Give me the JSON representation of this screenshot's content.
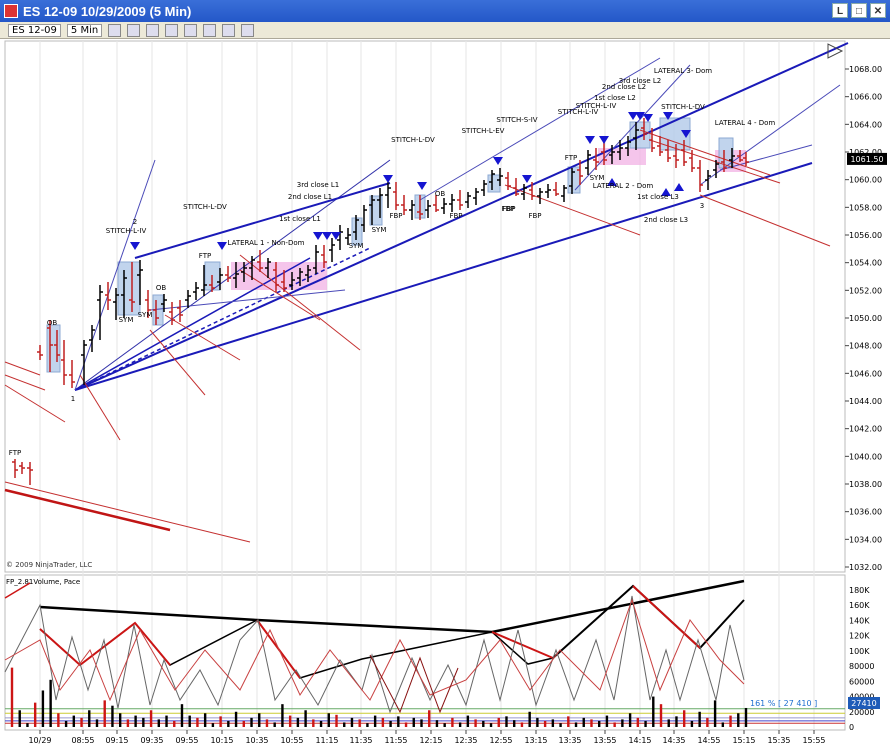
{
  "window": {
    "title": "ES 12-09  10/29/2009 (5 Min)",
    "btn_minimize": "L",
    "btn_restore": "□",
    "btn_close": "✕"
  },
  "toolbar": {
    "instrument": "ES 12-09",
    "period": "5 Min"
  },
  "price_panel": {
    "copyright": "© 2009 NinjaTrader, LLC",
    "y_ticks": [
      1068.0,
      1066.0,
      1064.0,
      1062.0,
      1060.0,
      1058.0,
      1056.0,
      1054.0,
      1052.0,
      1050.0,
      1048.0,
      1046.0,
      1044.0,
      1042.0,
      1040.0,
      1038.0,
      1036.0,
      1034.0,
      1032.0
    ],
    "last_price": "1061.50"
  },
  "volume_panel": {
    "label": "FP_2.81Volume, Pace",
    "y_ticks": [
      "180K",
      "160K",
      "140K",
      "120K",
      "100K",
      "80000",
      "60000",
      "40000",
      "20000",
      "0"
    ],
    "pace_readout": "161 % [ 27 410 ]",
    "last_volume": "27410"
  },
  "x_axis": {
    "ticks": [
      "10/29",
      "08:55",
      "09:15",
      "09:35",
      "09:55",
      "10:15",
      "10:35",
      "10:55",
      "11:15",
      "11:35",
      "11:55",
      "12:15",
      "12:35",
      "12:55",
      "13:15",
      "13:35",
      "13:55",
      "14:15",
      "14:35",
      "14:55",
      "15:15",
      "15:35",
      "15:55"
    ]
  },
  "annotations": [
    {
      "text": "FTP"
    },
    {
      "text": "OB"
    },
    {
      "text": "1"
    },
    {
      "text": "2"
    },
    {
      "text": "STITCH-L-IV"
    },
    {
      "text": "SYM"
    },
    {
      "text": "SYM"
    },
    {
      "text": "OB"
    },
    {
      "text": "STITCH-L-DV"
    },
    {
      "text": "FTP"
    },
    {
      "text": "LATERAL 1 - Non-Dom"
    },
    {
      "text": "3rd close L1"
    },
    {
      "text": "2nd close L1"
    },
    {
      "text": "1st close L1"
    },
    {
      "text": "SYM"
    },
    {
      "text": "SYM"
    },
    {
      "text": "STITCH-L-DV"
    },
    {
      "text": "FBP"
    },
    {
      "text": "OB"
    },
    {
      "text": "FBP"
    },
    {
      "text": "FBP"
    },
    {
      "text": "STITCH-L-EV"
    },
    {
      "text": "STITCH-S-IV"
    },
    {
      "text": "FBP"
    },
    {
      "text": "FBP"
    },
    {
      "text": "STITCH-L-IV"
    },
    {
      "text": "STITCH-L-IV"
    },
    {
      "text": "FTP"
    },
    {
      "text": "SYM"
    },
    {
      "text": "3rd close L2"
    },
    {
      "text": "2nd close L2"
    },
    {
      "text": "1st close L2"
    },
    {
      "text": "LATERAL 2 - Dom"
    },
    {
      "text": "LATERAL 3- Dom"
    },
    {
      "text": "STITCH-L-DV"
    },
    {
      "text": "1st close L3"
    },
    {
      "text": "2nd close L3"
    },
    {
      "text": "3"
    },
    {
      "text": "LATERAL 4 - Dom"
    }
  ],
  "chart_data": [
    {
      "type": "candlestick",
      "title": "ES 12-09 (5 Min)",
      "date": "10/29/2009",
      "ylim": [
        1032,
        1069.5
      ],
      "approx_closes": [
        {
          "t": "prev",
          "v": 1039.6
        },
        {
          "t": "08:30",
          "v": 1047.5
        },
        {
          "t": "08:40",
          "v": 1045.0
        },
        {
          "t": "08:50",
          "v": 1049.5
        },
        {
          "t": "09:00",
          "v": 1052.5
        },
        {
          "t": "09:10",
          "v": 1051.0
        },
        {
          "t": "09:20",
          "v": 1054.5
        },
        {
          "t": "09:35",
          "v": 1051.0
        },
        {
          "t": "09:55",
          "v": 1052.0
        },
        {
          "t": "10:15",
          "v": 1053.5
        },
        {
          "t": "10:35",
          "v": 1053.8
        },
        {
          "t": "10:55",
          "v": 1052.5
        },
        {
          "t": "11:15",
          "v": 1055.2
        },
        {
          "t": "11:35",
          "v": 1057.0
        },
        {
          "t": "11:55",
          "v": 1058.5
        },
        {
          "t": "12:15",
          "v": 1057.8
        },
        {
          "t": "12:35",
          "v": 1059.0
        },
        {
          "t": "12:55",
          "v": 1060.5
        },
        {
          "t": "13:15",
          "v": 1058.5
        },
        {
          "t": "13:35",
          "v": 1060.2
        },
        {
          "t": "13:55",
          "v": 1062.5
        },
        {
          "t": "14:15",
          "v": 1064.0
        },
        {
          "t": "14:35",
          "v": 1061.5
        },
        {
          "t": "14:55",
          "v": 1059.5
        },
        {
          "t": "15:05",
          "v": 1062.5
        },
        {
          "t": "15:15",
          "v": 1061.5
        }
      ]
    },
    {
      "type": "bar",
      "title": "FP_2.81Volume, Pace",
      "ylim": [
        0,
        190000
      ],
      "values": [
        78000,
        22000,
        5000,
        32000,
        48000,
        62000,
        18000,
        8000,
        15000,
        12000,
        22000,
        10000,
        35000,
        28000,
        18000,
        10000,
        15000,
        12000,
        22000,
        10000,
        15000,
        8000,
        30000,
        15000,
        12000,
        18000,
        5000,
        14000,
        8000,
        20000,
        8000,
        12000,
        18000,
        10000,
        6000,
        30000,
        15000,
        12000,
        22000,
        10000,
        8000,
        18000,
        16000,
        6000,
        12000,
        10000,
        5000,
        15000,
        12000,
        8000,
        14000,
        6000,
        12000,
        10000,
        22000,
        9000,
        5000,
        12000,
        6000,
        15000,
        10000,
        8000,
        5000,
        12000,
        14000,
        9000,
        6000,
        20000,
        12000,
        8000,
        10000,
        5000,
        14000,
        6000,
        12000,
        10000,
        8000,
        15000,
        6000,
        10000,
        18000,
        12000,
        8000,
        40000,
        30000,
        10000,
        14000,
        22000,
        8000,
        20000,
        12000,
        35000,
        6000,
        15000,
        18000,
        25000
      ]
    }
  ]
}
